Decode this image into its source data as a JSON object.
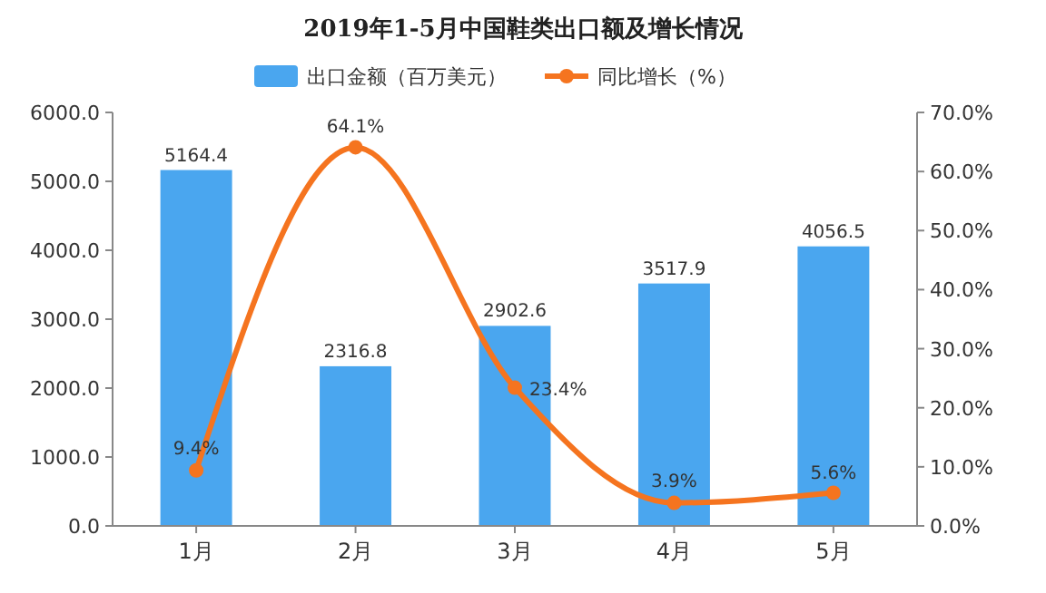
{
  "chart_data": {
    "type": "bar",
    "title": "2019年1-5月中国鞋类出口额及增长情况",
    "categories": [
      "1月",
      "2月",
      "3月",
      "4月",
      "5月"
    ],
    "series": [
      {
        "name": "出口金额（百万美元）",
        "color": "#4aa6ef",
        "values": [
          5164.4,
          2316.8,
          2902.6,
          3517.9,
          4056.5
        ],
        "value_labels": [
          "5164.4",
          "2316.8",
          "2902.6",
          "3517.9",
          "4056.5"
        ]
      },
      {
        "name": "同比增长（%）",
        "type": "line",
        "axis": "y2",
        "color": "#f5741f",
        "marker": "circle",
        "values": [
          9.4,
          64.1,
          23.4,
          3.9,
          5.6
        ],
        "value_labels": [
          "9.4%",
          "64.1%",
          "23.4%",
          "3.9%",
          "5.6%"
        ]
      }
    ],
    "ylim": [
      0,
      6000
    ],
    "yticks": [
      {
        "value": 0,
        "label": "0.0"
      },
      {
        "value": 1000,
        "label": "1000.0"
      },
      {
        "value": 2000,
        "label": "2000.0"
      },
      {
        "value": 3000,
        "label": "3000.0"
      },
      {
        "value": 4000,
        "label": "4000.0"
      },
      {
        "value": 5000,
        "label": "5000.0"
      },
      {
        "value": 6000,
        "label": "6000.0"
      }
    ],
    "y2lim": [
      0,
      70
    ],
    "y2ticks": [
      {
        "value": 0,
        "label": "0.0%"
      },
      {
        "value": 10,
        "label": "10.0%"
      },
      {
        "value": 20,
        "label": "20.0%"
      },
      {
        "value": 30,
        "label": "30.0%"
      },
      {
        "value": 40,
        "label": "40.0%"
      },
      {
        "value": 50,
        "label": "50.0%"
      },
      {
        "value": 60,
        "label": "60.0%"
      },
      {
        "value": 70,
        "label": "70.0%"
      }
    ],
    "legend": "top",
    "grid": false
  }
}
